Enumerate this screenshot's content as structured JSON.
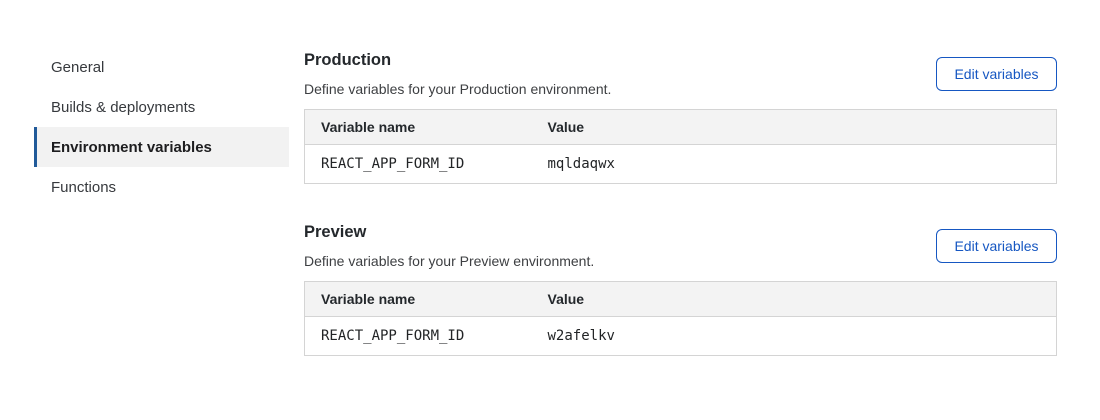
{
  "sidebar": {
    "items": [
      {
        "label": "General",
        "selected": false
      },
      {
        "label": "Builds & deployments",
        "selected": false
      },
      {
        "label": "Environment variables",
        "selected": true
      },
      {
        "label": "Functions",
        "selected": false
      }
    ]
  },
  "sections": [
    {
      "title": "Production",
      "description": "Define variables for your Production environment.",
      "button_label": "Edit variables",
      "table": {
        "columns": [
          "Variable name",
          "Value"
        ],
        "rows": [
          {
            "name": "REACT_APP_FORM_ID",
            "value": "mqldaqwx"
          }
        ]
      }
    },
    {
      "title": "Preview",
      "description": "Define variables for your Preview environment.",
      "button_label": "Edit variables",
      "table": {
        "columns": [
          "Variable name",
          "Value"
        ],
        "rows": [
          {
            "name": "REACT_APP_FORM_ID",
            "value": "w2afelkv"
          }
        ]
      }
    }
  ],
  "colors": {
    "accent_blue": "#1657c2",
    "nav_marker_blue": "#215a99",
    "selected_nav_bg": "#f2f2f2",
    "table_header_bg": "#f3f3f3",
    "table_border": "#d4d4d4"
  }
}
